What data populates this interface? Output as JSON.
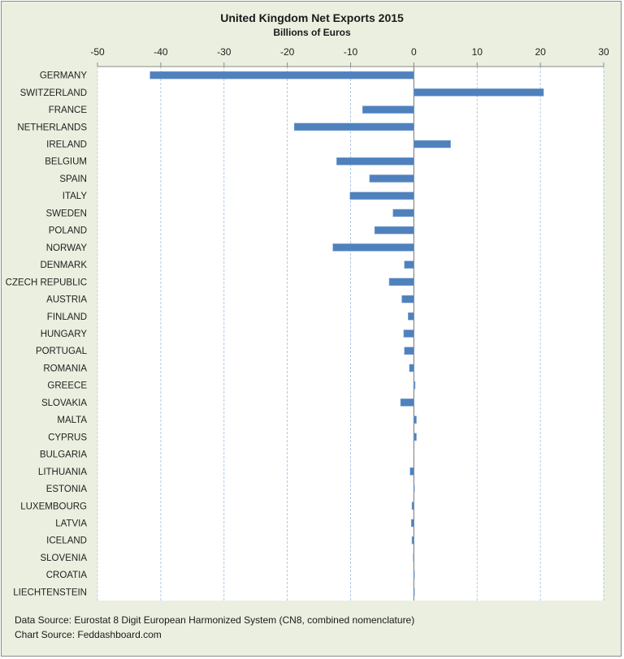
{
  "chart_data": {
    "type": "bar",
    "orientation": "horizontal",
    "title": "United Kingdom Net Exports 2015",
    "subtitle": "Billions of Euros",
    "xlabel": "",
    "ylabel": "",
    "xlim": [
      -50,
      30
    ],
    "xticks": [
      -50,
      -40,
      -30,
      -20,
      -10,
      0,
      10,
      20,
      30
    ],
    "grid": true,
    "legend": "none",
    "bar_color": "#4f81bd",
    "categories": [
      "GERMANY",
      "SWITZERLAND",
      "FRANCE",
      "NETHERLANDS",
      "IRELAND",
      "BELGIUM",
      "SPAIN",
      "ITALY",
      "SWEDEN",
      "POLAND",
      "NORWAY",
      "DENMARK",
      "CZECH REPUBLIC",
      "AUSTRIA",
      "FINLAND",
      "HUNGARY",
      "PORTUGAL",
      "ROMANIA",
      "GREECE",
      "SLOVAKIA",
      "MALTA",
      "CYPRUS",
      "BULGARIA",
      "LITHUANIA",
      "ESTONIA",
      "LUXEMBOURG",
      "LATVIA",
      "ICELAND",
      "SLOVENIA",
      "CROATIA",
      "LIECHTENSTEIN"
    ],
    "values": [
      -41.7,
      20.5,
      -8.1,
      -18.9,
      5.8,
      -12.2,
      -7.0,
      -10.1,
      -3.3,
      -6.2,
      -12.8,
      -1.5,
      -3.9,
      -1.9,
      -0.9,
      -1.6,
      -1.5,
      -0.7,
      0.2,
      -2.1,
      0.4,
      0.4,
      0.0,
      -0.6,
      0.1,
      -0.3,
      -0.4,
      -0.3,
      -0.1,
      0.1,
      0.1
    ]
  },
  "footnotes": {
    "data_source": "Data Source: Eurostat 8 Digit European Harmonized System (CN8, combined nomenclature)",
    "chart_source": "Chart Source: Feddashboard.com"
  }
}
